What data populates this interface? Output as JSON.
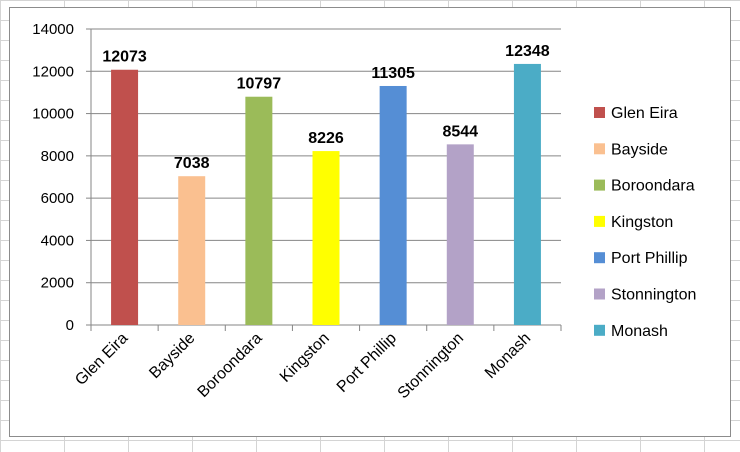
{
  "chart_data": {
    "type": "bar",
    "title": "",
    "xlabel": "",
    "ylabel": "",
    "categories": [
      "Glen Eira",
      "Bayside",
      "Boroondara",
      "Kingston",
      "Port Phillip",
      "Stonnington",
      "Monash"
    ],
    "values": [
      12073,
      7038,
      10797,
      8226,
      11305,
      8544,
      12348
    ],
    "data_labels": [
      "12073",
      "7038",
      "10797",
      "8226",
      "11305",
      "8544",
      "12348"
    ],
    "colors": [
      "#c0504d",
      "#fac090",
      "#9bbb59",
      "#ffff00",
      "#558ed5",
      "#b3a2c7",
      "#4bacc6"
    ],
    "ylim": [
      0,
      14000
    ],
    "yticks": [
      0,
      2000,
      4000,
      6000,
      8000,
      10000,
      12000,
      14000
    ],
    "ytick_labels": [
      "0",
      "2000",
      "4000",
      "6000",
      "8000",
      "10000",
      "12000",
      "14000"
    ],
    "legend": {
      "position": "right",
      "entries": [
        "Glen Eira",
        "Bayside",
        "Boroondara",
        "Kingston",
        "Port Phillip",
        "Stonnington",
        "Monash"
      ]
    },
    "grid": true
  }
}
